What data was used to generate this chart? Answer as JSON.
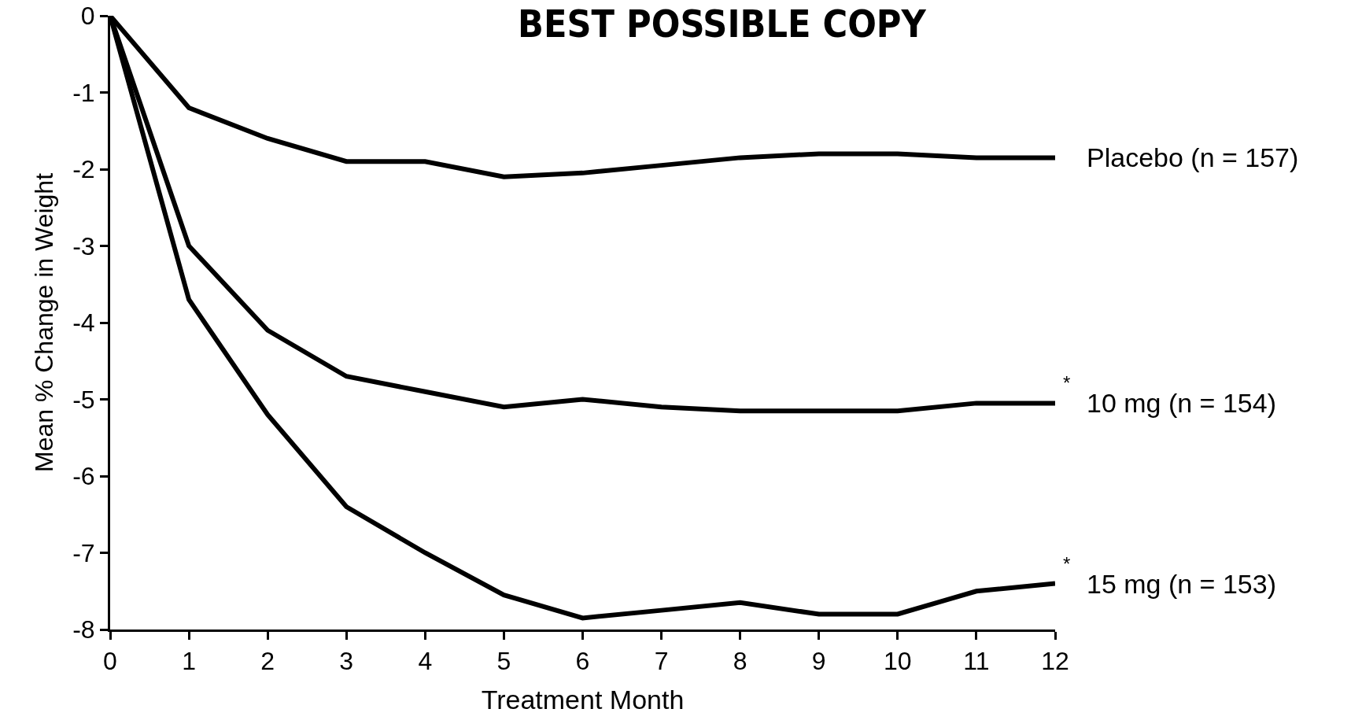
{
  "chart_data": {
    "type": "line",
    "title": "BEST POSSIBLE COPY",
    "xlabel": "Treatment Month",
    "ylabel": "Mean % Change in Weight",
    "x": [
      0,
      1,
      2,
      3,
      4,
      5,
      6,
      7,
      8,
      9,
      10,
      11,
      12
    ],
    "series": [
      {
        "name": "Placebo (n = 157)",
        "color": "#000000",
        "values": [
          0,
          -1.2,
          -1.6,
          -1.9,
          -1.9,
          -2.1,
          -2.05,
          -1.95,
          -1.85,
          -1.8,
          -1.8,
          -1.85,
          -1.85
        ]
      },
      {
        "name": "10 mg (n = 154)",
        "color": "#000000",
        "values": [
          0,
          -3.0,
          -4.1,
          -4.7,
          -4.9,
          -5.1,
          -5.0,
          -5.1,
          -5.15,
          -5.15,
          -5.15,
          -5.05,
          -5.05
        ]
      },
      {
        "name": "15 mg (n = 153)",
        "color": "#000000",
        "values": [
          0,
          -3.7,
          -5.2,
          -6.4,
          -7.0,
          -7.55,
          -7.85,
          -7.75,
          -7.65,
          -7.8,
          -7.8,
          -7.5,
          -7.4
        ]
      }
    ],
    "annotations": [
      {
        "text": "*",
        "x": 12,
        "y": -5.05
      },
      {
        "text": "*",
        "x": 12,
        "y": -7.4
      }
    ],
    "xlim": [
      0,
      12
    ],
    "xticks": [
      0,
      1,
      2,
      3,
      4,
      5,
      6,
      7,
      8,
      9,
      10,
      11,
      12
    ],
    "ylim": [
      -8,
      0
    ],
    "yticks": [
      -8,
      -7,
      -6,
      -5,
      -4,
      -3,
      -2,
      -1,
      0
    ],
    "grid": false,
    "legend": false,
    "marker": "none",
    "line_style": "solid"
  }
}
